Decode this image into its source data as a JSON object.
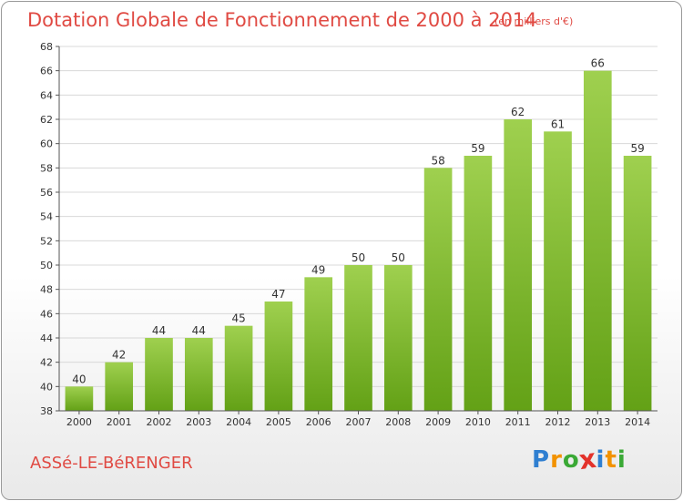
{
  "header": {
    "title": "Dotation Globale de Fonctionnement de 2000 à 2014",
    "subtitle": "(en milliers d'€)"
  },
  "commune": "ASSé-LE-BéRENGER",
  "logo": {
    "letters": [
      {
        "ch": "P",
        "color": "#2f7fd1"
      },
      {
        "ch": "r",
        "color": "#f29200"
      },
      {
        "ch": "o",
        "color": "#3aa935"
      },
      {
        "ch": "x",
        "color": "#e3322b"
      },
      {
        "ch": "i",
        "color": "#2f7fd1"
      },
      {
        "ch": "t",
        "color": "#f29200"
      },
      {
        "ch": "i",
        "color": "#3aa935"
      }
    ]
  },
  "colors": {
    "title": "#e04a43",
    "bar_top": "#9fd04f",
    "bar_bottom": "#63a116",
    "grid": "#d8d8d8",
    "axis": "#555555"
  },
  "chart_data": {
    "type": "bar",
    "title": "Dotation Globale de Fonctionnement de 2000 à 2014",
    "subtitle": "(en milliers d'€)",
    "categories": [
      "2000",
      "2001",
      "2002",
      "2003",
      "2004",
      "2005",
      "2006",
      "2007",
      "2008",
      "2009",
      "2010",
      "2011",
      "2012",
      "2013",
      "2014"
    ],
    "values": [
      40,
      42,
      44,
      44,
      45,
      47,
      49,
      50,
      50,
      58,
      59,
      62,
      61,
      66,
      59
    ],
    "ylim": [
      38,
      68
    ],
    "yticks": [
      38,
      40,
      42,
      44,
      46,
      48,
      50,
      52,
      54,
      56,
      58,
      60,
      62,
      64,
      66,
      68
    ],
    "grid": true,
    "xlabel": "",
    "ylabel": ""
  }
}
